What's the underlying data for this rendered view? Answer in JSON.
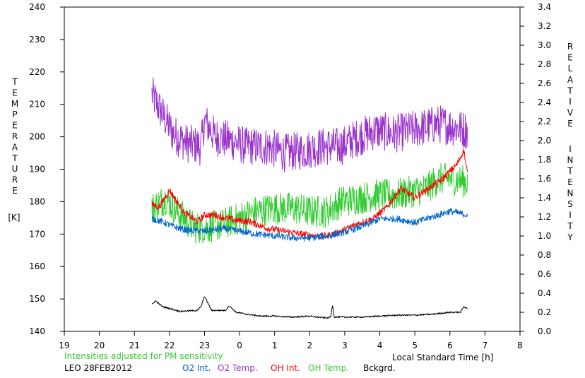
{
  "chart_data": {
    "type": "line",
    "left_axis_label_letters": [
      "T",
      "E",
      "M",
      "P",
      "E",
      "R",
      "A",
      "T",
      "U",
      "R",
      "E"
    ],
    "left_axis_unit": "[K]",
    "right_axis_words": [
      [
        "R",
        "E",
        "L",
        "A",
        "T",
        "I",
        "V",
        "E"
      ],
      [
        "I",
        "N",
        "T",
        "E",
        "N",
        "S",
        "I",
        "T",
        "Y"
      ]
    ],
    "x_title": "Local Standard Time [h]",
    "note": "Intensities adjusted for PM sensitivity",
    "site_date": "LEO 28FEB2012",
    "x_range": [
      19,
      32
    ],
    "x_ticks": [
      19,
      20,
      21,
      22,
      23,
      24,
      25,
      26,
      27,
      28,
      29,
      30,
      31,
      32
    ],
    "x_tick_labels": [
      "19",
      "20",
      "21",
      "22",
      "23",
      "0",
      "1",
      "2",
      "3",
      "4",
      "5",
      "6",
      "7",
      "8"
    ],
    "y_left_range": [
      140,
      240
    ],
    "y_left_ticks": [
      "140",
      "150",
      "160",
      "170",
      "180",
      "190",
      "200",
      "210",
      "220",
      "230",
      "240"
    ],
    "y_right_range": [
      0.0,
      3.4
    ],
    "y_right_ticks": [
      "0.0",
      "0.2",
      "0.4",
      "0.6",
      "0.8",
      "1.0",
      "1.2",
      "1.4",
      "1.6",
      "1.8",
      "2.0",
      "2.2",
      "2.4",
      "2.6",
      "2.8",
      "3.0",
      "3.2",
      "3.4"
    ],
    "grid": false,
    "legend_position": "bottom",
    "series": [
      {
        "name": "O2 Temp.",
        "axis": "left",
        "color": "#9933cc",
        "noise": 6,
        "x": [
          21.5,
          21.8,
          22.1,
          22.5,
          22.9,
          23.0,
          23.3,
          23.7,
          24.2,
          24.8,
          25.3,
          25.9,
          26.4,
          26.9,
          27.4,
          27.9,
          28.4,
          28.9,
          29.3,
          29.7,
          30.1,
          30.5
        ],
        "y": [
          213,
          207,
          201,
          198,
          197,
          205,
          200,
          199,
          197,
          197,
          195,
          196,
          197,
          197,
          200,
          202,
          201,
          202,
          203,
          204,
          203,
          202
        ]
      },
      {
        "name": "OH Temp.",
        "axis": "left",
        "color": "#33cc33",
        "noise": 5,
        "x": [
          21.5,
          21.9,
          22.3,
          22.7,
          23.1,
          23.5,
          24.0,
          24.5,
          25.0,
          25.5,
          26.0,
          26.5,
          26.9,
          27.4,
          27.9,
          28.4,
          28.9,
          29.3,
          29.7,
          30.1,
          30.5
        ],
        "y": [
          178,
          181,
          176,
          172,
          172,
          173,
          175,
          177,
          178,
          178,
          177,
          177,
          180,
          181,
          182,
          182,
          183,
          184,
          187,
          187,
          186
        ]
      },
      {
        "name": "OH Int.",
        "axis": "right",
        "color": "#ff0000",
        "noise": 0.035,
        "x": [
          21.5,
          21.7,
          22.0,
          22.4,
          22.8,
          23.0,
          23.3,
          23.8,
          24.3,
          24.8,
          25.3,
          25.8,
          26.2,
          26.5,
          26.9,
          27.3,
          27.8,
          28.2,
          28.6,
          29.0,
          29.4,
          29.8,
          30.2,
          30.4,
          30.5
        ],
        "y": [
          1.33,
          1.3,
          1.48,
          1.25,
          1.15,
          1.22,
          1.22,
          1.17,
          1.15,
          1.08,
          1.05,
          1.02,
          1.0,
          1.0,
          1.05,
          1.12,
          1.18,
          1.3,
          1.5,
          1.4,
          1.5,
          1.6,
          1.75,
          1.9,
          1.65
        ]
      },
      {
        "name": "O2 Int.",
        "axis": "right",
        "color": "#0066cc",
        "noise": 0.035,
        "x": [
          21.5,
          21.8,
          22.1,
          22.5,
          23.0,
          23.5,
          24.0,
          24.5,
          25.0,
          25.5,
          26.0,
          26.5,
          27.0,
          27.5,
          28.0,
          28.5,
          29.0,
          29.5,
          30.0,
          30.5
        ],
        "y": [
          1.18,
          1.15,
          1.1,
          1.06,
          1.05,
          1.08,
          1.05,
          1.02,
          1.0,
          0.98,
          0.98,
          1.0,
          1.04,
          1.1,
          1.18,
          1.18,
          1.14,
          1.2,
          1.26,
          1.22
        ]
      },
      {
        "name": "Bckgrd.",
        "axis": "right",
        "color": "#000000",
        "noise": 0.008,
        "x": [
          21.5,
          21.6,
          21.8,
          22.0,
          22.3,
          22.8,
          22.9,
          23.0,
          23.2,
          23.6,
          23.7,
          23.9,
          24.2,
          24.6,
          25.0,
          25.5,
          26.0,
          26.2,
          26.5,
          26.6,
          26.65,
          26.7,
          27.0,
          27.5,
          28.0,
          28.5,
          29.0,
          29.5,
          30.0,
          30.3,
          30.4,
          30.5
        ],
        "y": [
          0.28,
          0.32,
          0.26,
          0.24,
          0.21,
          0.22,
          0.26,
          0.37,
          0.22,
          0.22,
          0.27,
          0.2,
          0.18,
          0.16,
          0.16,
          0.15,
          0.16,
          0.15,
          0.14,
          0.15,
          0.28,
          0.15,
          0.15,
          0.15,
          0.16,
          0.17,
          0.17,
          0.18,
          0.2,
          0.2,
          0.26,
          0.24
        ]
      }
    ]
  }
}
